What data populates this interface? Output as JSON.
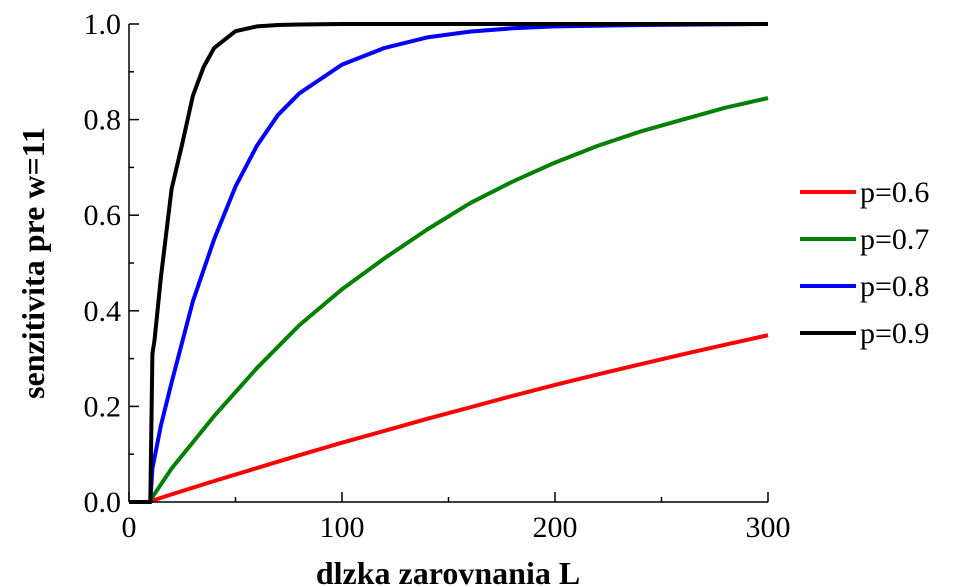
{
  "chart_data": {
    "type": "line",
    "xlabel": "dlzka zarovnania L",
    "ylabel": "senzitivita pre w=11",
    "xlim": [
      0,
      300
    ],
    "ylim": [
      0,
      1
    ],
    "xticks": [
      0,
      100,
      200,
      300
    ],
    "xtick_labels": [
      "0",
      "100",
      "200",
      "300"
    ],
    "yticks": [
      0,
      0.2,
      0.4,
      0.6,
      0.8,
      1.0
    ],
    "ytick_labels": [
      "0.0",
      "0.2",
      "0.4",
      "0.6",
      "0.8",
      "1.0"
    ],
    "grid": false,
    "legend_position": "right",
    "series": [
      {
        "name": "p=0.6",
        "color": "#ff0000",
        "x": [
          0,
          10,
          11,
          20,
          40,
          60,
          80,
          100,
          120,
          140,
          160,
          180,
          200,
          220,
          240,
          260,
          280,
          300
        ],
        "y": [
          0,
          0,
          0.003,
          0.016,
          0.044,
          0.071,
          0.098,
          0.124,
          0.149,
          0.174,
          0.198,
          0.222,
          0.245,
          0.267,
          0.288,
          0.309,
          0.329,
          0.349
        ]
      },
      {
        "name": "p=0.7",
        "color": "#008000",
        "x": [
          0,
          10,
          11,
          20,
          40,
          60,
          80,
          100,
          120,
          140,
          160,
          180,
          200,
          220,
          240,
          260,
          280,
          300
        ],
        "y": [
          0,
          0,
          0.01,
          0.07,
          0.18,
          0.28,
          0.37,
          0.445,
          0.51,
          0.57,
          0.625,
          0.67,
          0.71,
          0.745,
          0.775,
          0.8,
          0.825,
          0.845
        ]
      },
      {
        "name": "p=0.8",
        "color": "#0000ff",
        "x": [
          0,
          10,
          11,
          15,
          20,
          30,
          40,
          50,
          60,
          70,
          80,
          100,
          120,
          140,
          160,
          180,
          200,
          240,
          300
        ],
        "y": [
          0,
          0,
          0.07,
          0.16,
          0.25,
          0.42,
          0.55,
          0.66,
          0.745,
          0.81,
          0.855,
          0.915,
          0.95,
          0.972,
          0.984,
          0.991,
          0.995,
          0.998,
          1.0
        ]
      },
      {
        "name": "p=0.9",
        "color": "#000000",
        "x": [
          0,
          10,
          11,
          12,
          15,
          20,
          25,
          30,
          35,
          40,
          50,
          60,
          70,
          80,
          100,
          150,
          300
        ],
        "y": [
          0,
          0,
          0.31,
          0.34,
          0.47,
          0.655,
          0.75,
          0.85,
          0.91,
          0.95,
          0.985,
          0.995,
          0.998,
          0.999,
          1.0,
          1.0,
          1.0
        ]
      }
    ]
  }
}
